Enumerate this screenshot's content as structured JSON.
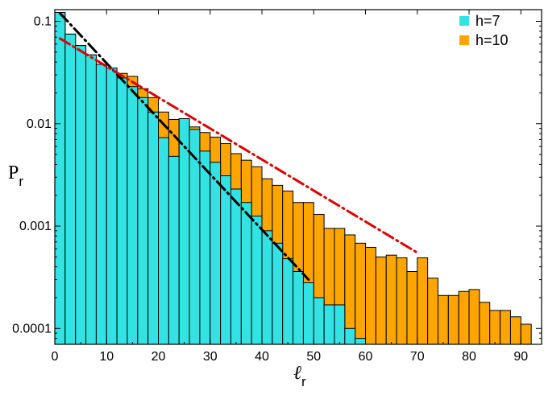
{
  "chart_data": {
    "type": "bar",
    "scale_y": "log",
    "xlim": [
      0,
      94
    ],
    "ylim": [
      7e-05,
      0.13
    ],
    "xticks": [
      0,
      10,
      20,
      30,
      40,
      50,
      60,
      70,
      80,
      90
    ],
    "yticks": [
      0.1,
      0.01,
      0.001,
      0.0001
    ],
    "ytick_labels": [
      "0.1",
      "0.01",
      "0.001",
      "0.0001"
    ],
    "xlabel": {
      "main": "ℓ",
      "sub": "r"
    },
    "ylabel": {
      "main": "P",
      "sub": "r"
    },
    "legend_position": "top-right",
    "bin_width": 2,
    "series": [
      {
        "name": "h=7",
        "color": "#33e3e3",
        "edgecolor": "#000000",
        "x": [
          0,
          2,
          4,
          6,
          8,
          10,
          12,
          14,
          16,
          18,
          20,
          22,
          24,
          26,
          28,
          30,
          32,
          34,
          36,
          38,
          40,
          42,
          44,
          46,
          48,
          50,
          52,
          54,
          56,
          58
        ],
        "values": [
          0.122,
          0.075,
          0.058,
          0.047,
          0.038,
          0.035,
          0.028,
          0.023,
          0.018,
          0.013,
          0.0073,
          0.0048,
          0.0112,
          0.0088,
          0.0054,
          0.0042,
          0.0031,
          0.0023,
          0.0017,
          0.00125,
          0.0009,
          0.00068,
          0.00048,
          0.00036,
          0.00028,
          0.0002,
          0.00017,
          0.00017,
          0.0001,
          8e-05
        ]
      },
      {
        "name": "h=10",
        "color": "#ffa500",
        "edgecolor": "#000000",
        "x": [
          0,
          2,
          4,
          6,
          8,
          10,
          12,
          14,
          16,
          18,
          20,
          22,
          24,
          26,
          28,
          30,
          32,
          34,
          36,
          38,
          40,
          42,
          44,
          46,
          48,
          50,
          52,
          54,
          56,
          58,
          60,
          62,
          64,
          66,
          68,
          70,
          72,
          74,
          76,
          78,
          80,
          82,
          84,
          86,
          88,
          90
        ],
        "values": [
          0.122,
          0.075,
          0.058,
          0.047,
          0.038,
          0.035,
          0.031,
          0.029,
          0.022,
          0.018,
          0.013,
          0.011,
          0.0112,
          0.0093,
          0.0082,
          0.0074,
          0.0064,
          0.0051,
          0.0044,
          0.0038,
          0.0029,
          0.0025,
          0.0022,
          0.0017,
          0.0017,
          0.0013,
          0.00095,
          0.00095,
          0.00082,
          0.00068,
          0.00062,
          0.0005,
          0.00052,
          0.00049,
          0.00036,
          0.00049,
          0.00031,
          0.00021,
          0.00021,
          0.00023,
          0.00024,
          0.00018,
          0.00015,
          0.00015,
          0.00013,
          0.00011
        ]
      }
    ],
    "fit_lines": [
      {
        "color": "#000000",
        "style": "dash-dot",
        "x": [
          1,
          49
        ],
        "y": [
          0.12,
          0.0003
        ]
      },
      {
        "color": "#dd0000",
        "style": "dash-dot",
        "x": [
          1,
          70
        ],
        "y": [
          0.068,
          0.00055
        ]
      }
    ]
  }
}
